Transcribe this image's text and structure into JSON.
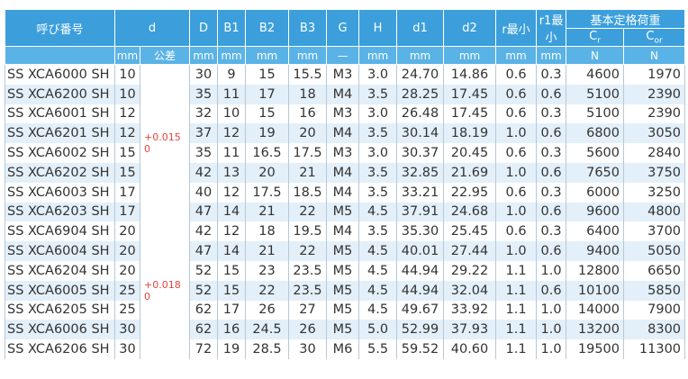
{
  "table": {
    "header": {
      "part_no": "呼び番号",
      "columns": [
        "d",
        "D",
        "B1",
        "B2",
        "B3",
        "G",
        "H",
        "d1",
        "d2",
        "r最小",
        "r1最小"
      ],
      "load_group": "基本定格荷重",
      "load_columns": [
        {
          "main": "C",
          "sub": "r"
        },
        {
          "main": "C",
          "sub": "or"
        }
      ],
      "units": [
        "mm",
        "公差",
        "mm",
        "mm",
        "mm",
        "mm",
        "—",
        "mm",
        "mm",
        "mm",
        "mm",
        "mm",
        "N",
        "N"
      ]
    },
    "tolerance_groups": [
      {
        "upper": "+0.015",
        "lower": "0",
        "rows": 8
      },
      {
        "upper": "+0.018",
        "lower": "0",
        "rows": 7
      }
    ],
    "rows": [
      [
        "SS XCA6000 SH",
        "10",
        "30",
        "9",
        "15",
        "15.5",
        "M3",
        "3.0",
        "24.70",
        "14.86",
        "0.6",
        "0.3",
        "4600",
        "1970"
      ],
      [
        "SS XCA6200 SH",
        "10",
        "35",
        "11",
        "17",
        "18",
        "M4",
        "3.5",
        "28.25",
        "17.45",
        "0.6",
        "0.6",
        "5100",
        "2390"
      ],
      [
        "SS XCA6001 SH",
        "12",
        "32",
        "10",
        "15",
        "16",
        "M3",
        "3.0",
        "26.48",
        "17.45",
        "0.6",
        "0.3",
        "5100",
        "2390"
      ],
      [
        "SS XCA6201 SH",
        "12",
        "37",
        "12",
        "19",
        "20",
        "M4",
        "3.5",
        "30.14",
        "18.19",
        "1.0",
        "0.6",
        "6800",
        "3050"
      ],
      [
        "SS XCA6002 SH",
        "15",
        "35",
        "11",
        "16.5",
        "17.5",
        "M3",
        "3.0",
        "30.37",
        "20.45",
        "0.6",
        "0.3",
        "5600",
        "2840"
      ],
      [
        "SS XCA6202 SH",
        "15",
        "42",
        "13",
        "20",
        "21",
        "M4",
        "3.5",
        "32.85",
        "21.69",
        "1.0",
        "0.6",
        "7650",
        "3750"
      ],
      [
        "SS XCA6003 SH",
        "17",
        "40",
        "12",
        "17.5",
        "18.5",
        "M4",
        "3.5",
        "33.21",
        "22.95",
        "0.6",
        "0.3",
        "6000",
        "3250"
      ],
      [
        "SS XCA6203 SH",
        "17",
        "47",
        "14",
        "21",
        "22",
        "M5",
        "4.5",
        "37.91",
        "24.68",
        "1.0",
        "0.6",
        "9600",
        "4800"
      ],
      [
        "SS XCA6904 SH",
        "20",
        "42",
        "12",
        "18",
        "19.5",
        "M4",
        "3.5",
        "35.30",
        "25.45",
        "0.6",
        "0.3",
        "6400",
        "3700"
      ],
      [
        "SS XCA6004 SH",
        "20",
        "47",
        "14",
        "21",
        "22",
        "M5",
        "4.5",
        "40.01",
        "27.44",
        "1.0",
        "0.6",
        "9400",
        "5050"
      ],
      [
        "SS XCA6204 SH",
        "20",
        "52",
        "15",
        "23",
        "23.5",
        "M5",
        "4.5",
        "44.94",
        "29.22",
        "1.1",
        "1.0",
        "12800",
        "6650"
      ],
      [
        "SS XCA6005 SH",
        "25",
        "52",
        "15",
        "22",
        "23.5",
        "M5",
        "4.5",
        "44.94",
        "32.04",
        "1.1",
        "0.6",
        "10100",
        "5850"
      ],
      [
        "SS XCA6205 SH",
        "25",
        "62",
        "17",
        "26",
        "27",
        "M5",
        "4.5",
        "49.67",
        "33.92",
        "1.1",
        "1.0",
        "14000",
        "7900"
      ],
      [
        "SS XCA6006 SH",
        "30",
        "62",
        "16",
        "24.5",
        "26",
        "M5",
        "5.0",
        "52.99",
        "37.93",
        "1.1",
        "1.0",
        "13200",
        "8300"
      ],
      [
        "SS XCA6206 SH",
        "30",
        "72",
        "19",
        "28.5",
        "30",
        "M6",
        "5.5",
        "59.52",
        "40.60",
        "1.1",
        "1.0",
        "19500",
        "11300"
      ]
    ]
  }
}
